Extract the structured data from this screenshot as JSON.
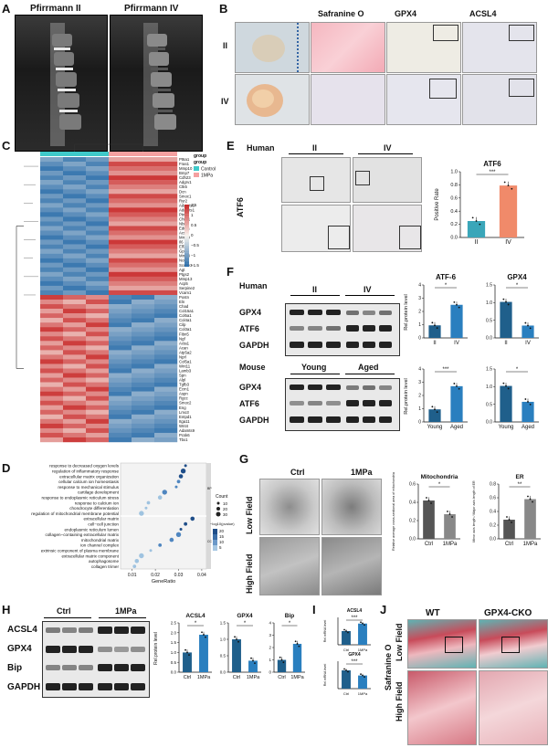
{
  "panels": {
    "A": {
      "letter": "A",
      "labels": [
        "Pfirrmann II",
        "Pfirrmann IV"
      ]
    },
    "B": {
      "letter": "B",
      "columns": [
        "Safranine O",
        "GPX4",
        "ACSL4"
      ],
      "rows": [
        "II",
        "IV"
      ]
    },
    "C": {
      "letter": "C",
      "legend_title": "group",
      "legend_items": [
        {
          "name": "Control",
          "color": "#3fc9c9"
        },
        {
          "name": "1MPa",
          "color": "#f4a0a0"
        }
      ],
      "scale_ticks": [
        "1.5",
        "1",
        "0.5",
        "0",
        "−0.5",
        "−1",
        "−1.5"
      ],
      "genes_top": [
        "Pt6a1",
        "Fras1",
        "Mmp10",
        "Bmp7",
        "Cdh23",
        "Adgrv1",
        "Ctk5",
        "Dcn",
        "Smoc1",
        "Ryr2",
        "Adamts5",
        "Adamts1",
        "Ptn",
        "Chi3l1",
        "Nbr1",
        "Ednra",
        "Acsl4",
        "Mmp9",
        "Il6",
        "Elf3",
        "Gpc2",
        "Mmp3",
        "Nos2",
        "Scube3",
        "Agt",
        "Ptgs2",
        "Mmp13",
        "Acp5",
        "Serpine2",
        "Vcam1"
      ],
      "genes_bottom": [
        "Postn",
        "Eln",
        "Chad",
        "Col15a1",
        "Col5a1",
        "Col4a1",
        "Cilp",
        "Col3a1",
        "Fibn5",
        "Ngf",
        "Acta1",
        "Acan",
        "Atp5a2",
        "Nprl",
        "Col5a1",
        "Wnt11",
        "Lamb3",
        "Spn",
        "Alpl",
        "Tgfb3",
        "Ecm1",
        "Aspn",
        "Rgcc",
        "Smoc2",
        "Eng",
        "Lmo3",
        "Entpd1",
        "Itga11",
        "Wnt4",
        "Adamts9",
        "Pcsk6",
        "Tbx1"
      ]
    },
    "D": {
      "letter": "D",
      "terms": [
        "response to decreased oxygen levels",
        "regulation of inflammatory response",
        "extracellular matrix organization",
        "cellular calcium ion homeostasis",
        "response to mechanical stimulus",
        "cartilage development",
        "response to endoplasmic reticulum stress",
        "response to calcium ion",
        "chondrocyte differentiation",
        "regulation of mitochondrial membrane potential",
        "extracellular matrix",
        "cell−cell junction",
        "endoplasmic reticulum lumen",
        "collagen−containing extracellular matrix",
        "mitochondrial matrix",
        "ion channel complex",
        "extrinsic component of plasma membrane",
        "extracellular matrix component",
        "autophagosome",
        "collagen trimer"
      ],
      "gene_ratio": [
        0.033,
        0.032,
        0.031,
        0.03,
        0.029,
        0.024,
        0.022,
        0.017,
        0.016,
        0.014,
        0.036,
        0.033,
        0.031,
        0.03,
        0.027,
        0.022,
        0.018,
        0.014,
        0.012,
        0.011
      ],
      "x_ticks": [
        "0.01",
        "0.02",
        "0.03",
        "0.04"
      ],
      "xlabel": "GeneRatio",
      "legend_count_title": "Count",
      "legend_count_values": [
        "10",
        "20",
        "30"
      ],
      "legend_color_title": "−log10(pvalue)",
      "legend_color_values": [
        "20",
        "15",
        "10",
        "5"
      ],
      "side_tags": [
        "BP",
        "CC"
      ]
    },
    "E": {
      "letter": "E",
      "header": "Human",
      "groups": [
        "II",
        "IV"
      ],
      "row_label": "ATF6",
      "chart_title": "ATF6",
      "ylabel": "Positive Rate",
      "y_ticks": [
        "0.0",
        "0.2",
        "0.4",
        "0.6",
        "0.8",
        "1.0"
      ],
      "categories": [
        "II",
        "IV"
      ],
      "values": [
        0.25,
        0.79
      ],
      "sig": "***"
    },
    "F": {
      "letter": "F",
      "human": {
        "header": "Human",
        "groups": [
          "II",
          "IV"
        ],
        "bands": [
          "GPX4",
          "ATF6",
          "GAPDH"
        ]
      },
      "mouse": {
        "header": "Mouse",
        "groups": [
          "Young",
          "Aged"
        ],
        "bands": [
          "GPX4",
          "ATF6",
          "GAPDH"
        ]
      },
      "ylabel": "Rel.protein level",
      "charts": [
        {
          "title": "ATF-6",
          "categories": [
            "II",
            "IV"
          ],
          "values": [
            0.95,
            2.5
          ],
          "ylim": [
            0,
            4
          ],
          "ticks": [
            "0",
            "1",
            "2",
            "3",
            "4"
          ],
          "sig": "*",
          "colors": [
            "#1f5f8b",
            "#2a7fbf"
          ]
        },
        {
          "title": "GPX4",
          "categories": [
            "II",
            "IV"
          ],
          "values": [
            1.02,
            0.35
          ],
          "ylim": [
            0,
            1.5
          ],
          "ticks": [
            "0.0",
            "0.5",
            "1.0",
            "1.5"
          ],
          "sig": "*",
          "colors": [
            "#1f5f8b",
            "#2a7fbf"
          ]
        },
        {
          "title": "",
          "categories": [
            "Young",
            "Aged"
          ],
          "values": [
            0.95,
            2.7
          ],
          "ylim": [
            0,
            4
          ],
          "ticks": [
            "0",
            "1",
            "2",
            "3",
            "4"
          ],
          "sig": "***",
          "colors": [
            "#1f5f8b",
            "#2a7fbf"
          ]
        },
        {
          "title": "",
          "categories": [
            "Young",
            "Aged"
          ],
          "values": [
            1.02,
            0.57
          ],
          "ylim": [
            0,
            1.5
          ],
          "ticks": [
            "0.0",
            "0.5",
            "1.0",
            "1.5"
          ],
          "sig": "*",
          "colors": [
            "#1f5f8b",
            "#2a7fbf"
          ]
        }
      ]
    },
    "G": {
      "letter": "G",
      "columns": [
        "Ctrl",
        "1MPa"
      ],
      "rows": [
        "Low Field",
        "High Field"
      ],
      "charts": [
        {
          "title": "Mitochondria",
          "ylabel": "Relative average cross-sectional area of mitochondria",
          "categories": [
            "Ctrl",
            "1MPa"
          ],
          "values": [
            0.42,
            0.27
          ],
          "ylim": [
            0,
            0.6
          ],
          "ticks": [
            "0.0",
            "0.2",
            "0.4",
            "0.6"
          ],
          "sig": "*"
        },
        {
          "title": "ER",
          "ylabel": "Minor axis length / Major axis length of ER",
          "categories": [
            "Ctrl",
            "1MPa"
          ],
          "values": [
            0.28,
            0.58
          ],
          "ylim": [
            0,
            0.8
          ],
          "ticks": [
            "0.0",
            "0.2",
            "0.4",
            "0.6",
            "0.8"
          ],
          "sig": "**"
        }
      ]
    },
    "H": {
      "letter": "H",
      "groups": [
        "Ctrl",
        "1MPa"
      ],
      "bands": [
        "ACSL4",
        "GPX4",
        "Bip",
        "GAPDH"
      ],
      "ylabel": "Rel.protein level",
      "charts": [
        {
          "title": "ACSL4",
          "categories": [
            "Ctrl",
            "1MPa"
          ],
          "values": [
            1.0,
            1.9
          ],
          "ylim": [
            0,
            2.5
          ],
          "ticks": [
            "0.0",
            "0.5",
            "1.0",
            "1.5",
            "2.0",
            "2.5"
          ],
          "sig": "*"
        },
        {
          "title": "GPX4",
          "categories": [
            "Ctrl",
            "1MPa"
          ],
          "values": [
            1.0,
            0.35
          ],
          "ylim": [
            0,
            1.5
          ],
          "ticks": [
            "0.0",
            "0.5",
            "1.0",
            "1.5"
          ],
          "sig": "*"
        },
        {
          "title": "Bip",
          "categories": [
            "Ctrl",
            "1MPa"
          ],
          "values": [
            1.0,
            2.3
          ],
          "ylim": [
            0,
            4
          ],
          "ticks": [
            "0",
            "1",
            "2",
            "3",
            "4"
          ],
          "sig": "*"
        }
      ]
    },
    "I": {
      "letter": "I",
      "charts": [
        {
          "title": "ACSL4",
          "ylabel": "Rel.mRNA level",
          "categories": [
            "Ctrl",
            "1MPa"
          ],
          "values": [
            1.0,
            1.55
          ],
          "ylim": [
            0,
            2
          ],
          "sig": "***"
        },
        {
          "title": "GPX4",
          "ylabel": "Rel.mRNA level",
          "categories": [
            "Ctrl",
            "1MPa"
          ],
          "values": [
            1.0,
            0.72
          ],
          "ylim": [
            0,
            1.5
          ],
          "sig": "***"
        }
      ]
    },
    "J": {
      "letter": "J",
      "columns": [
        "WT",
        "GPX4-CKO"
      ],
      "stain": "Safranine O",
      "rows": [
        "Low Field",
        "High Field"
      ]
    }
  }
}
